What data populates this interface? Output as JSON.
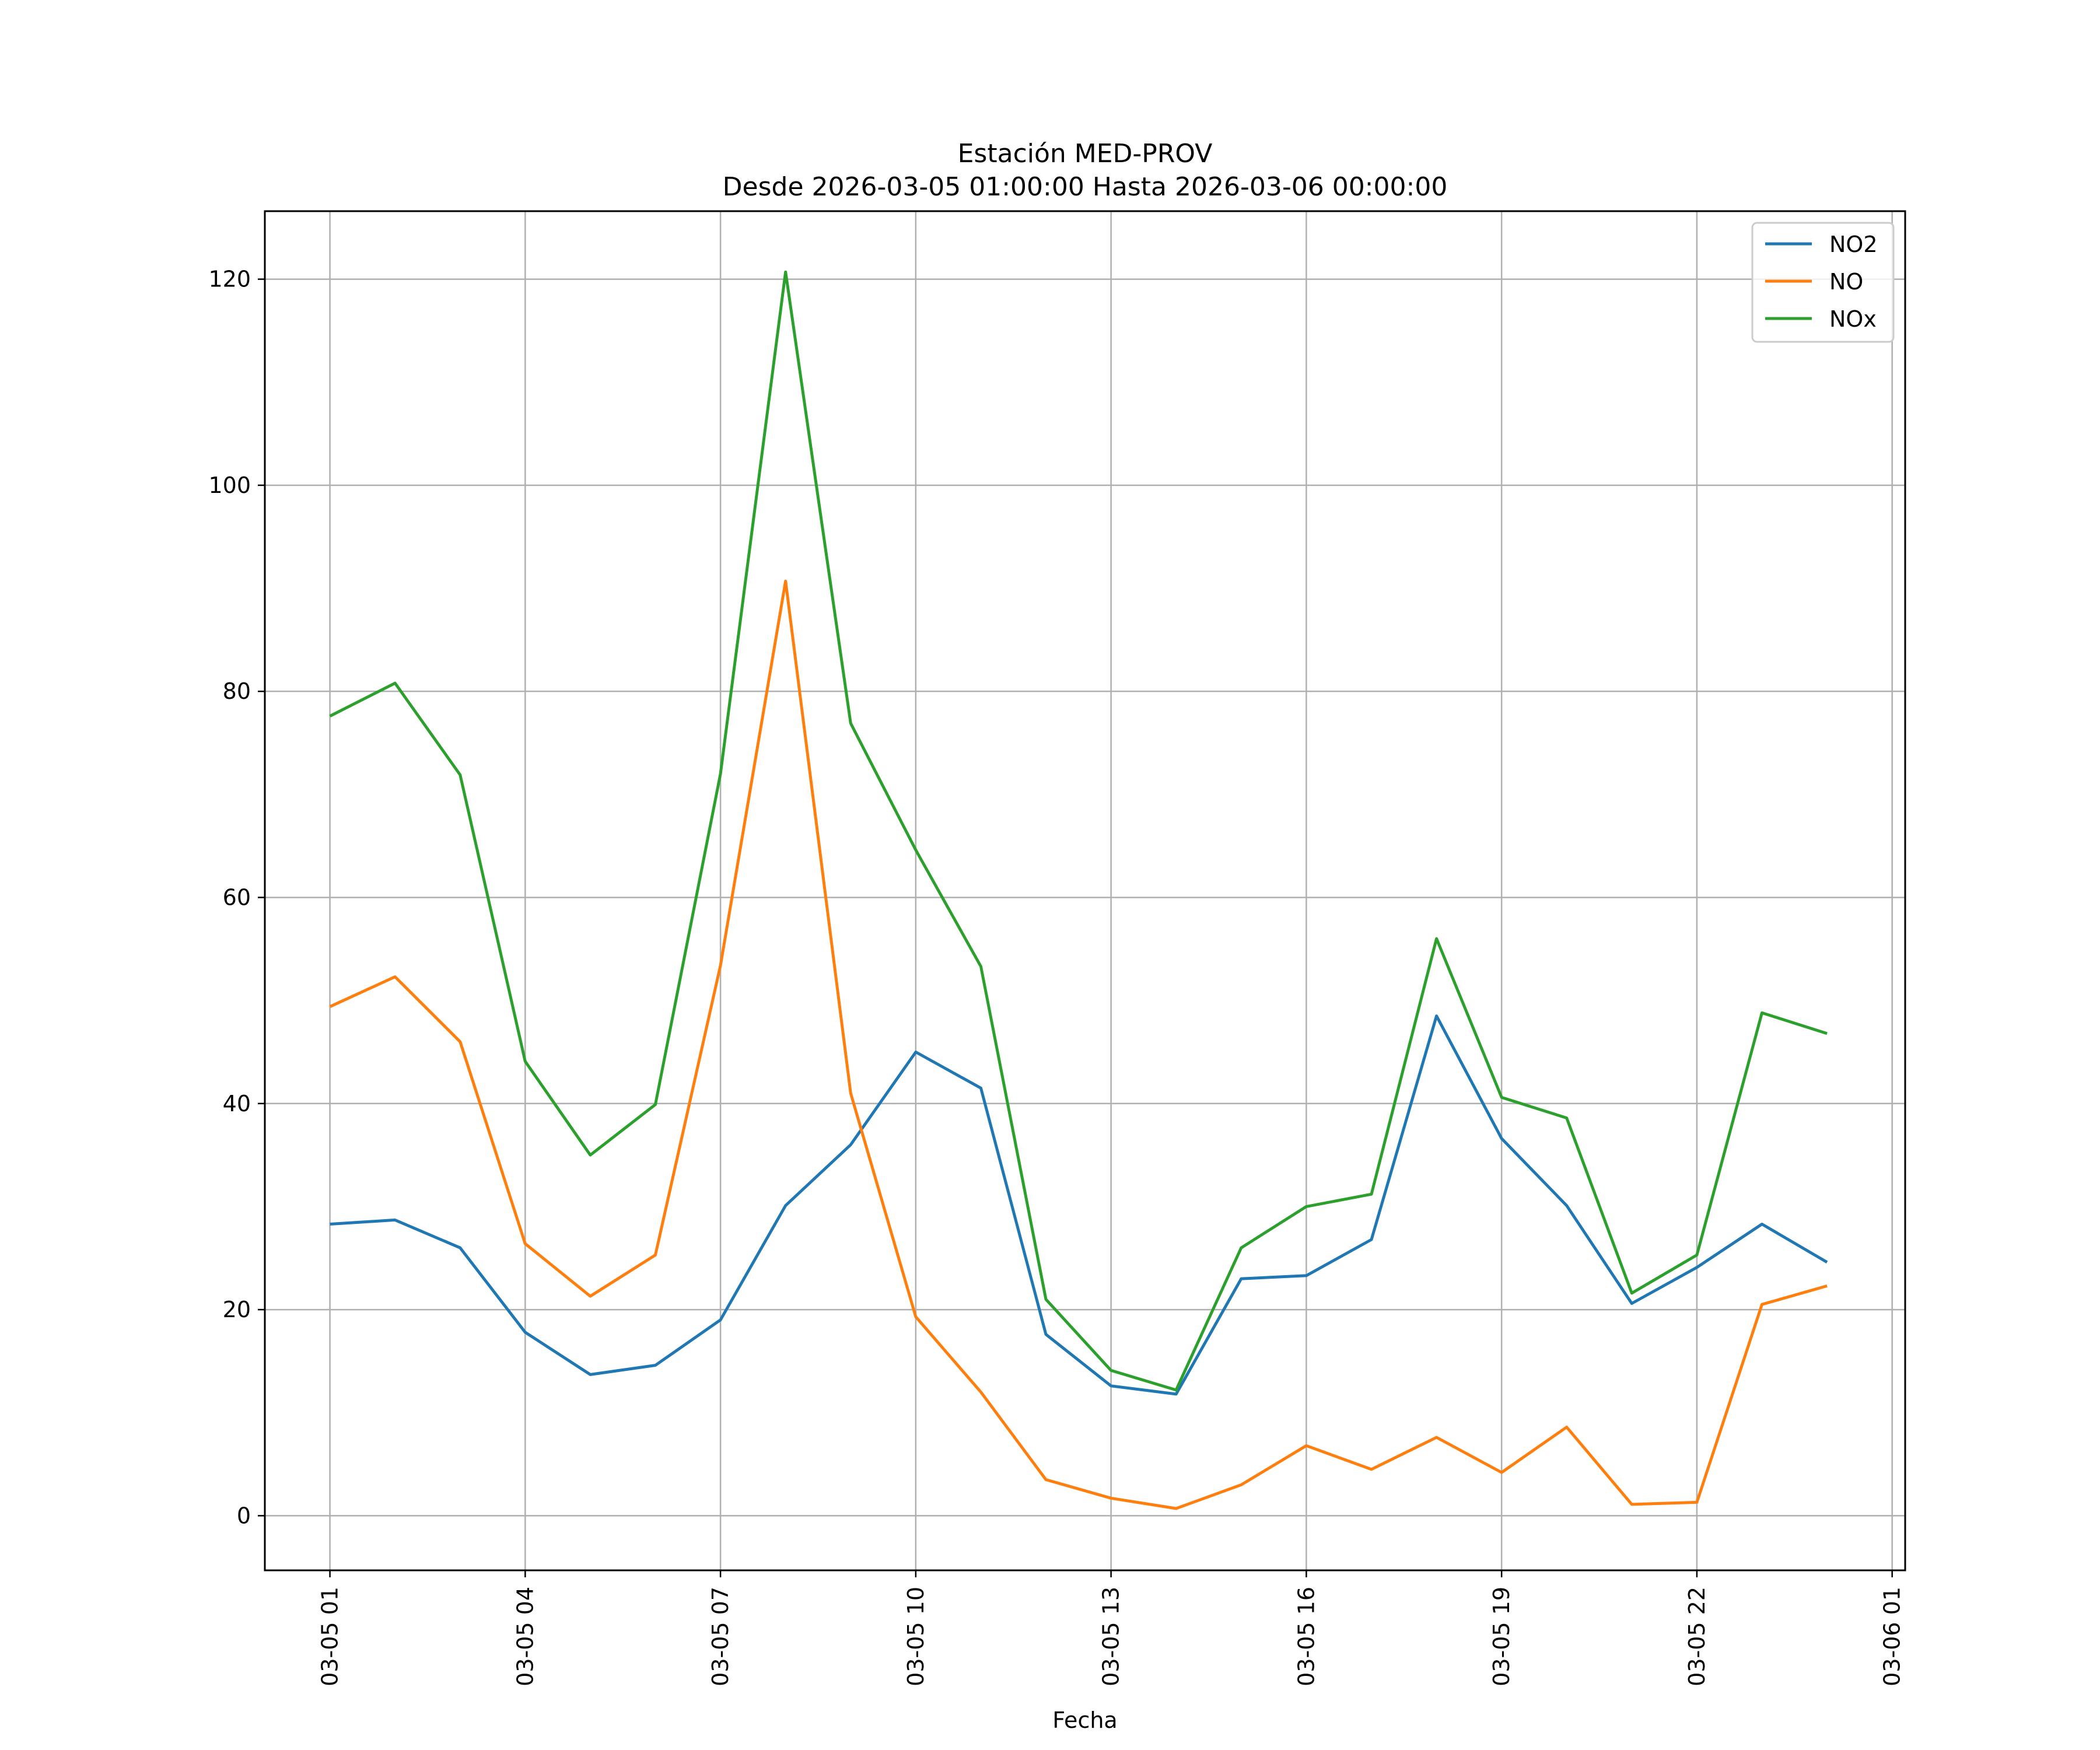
{
  "chart_data": {
    "type": "line",
    "title": "Estación MED-PROV",
    "subtitle": "Desde 2026-03-05 01:00:00 Hasta 2026-03-06 00:00:00",
    "xlabel": "Fecha",
    "ylabel": "",
    "x_unit": "hour",
    "x": [
      "2026-03-05 01:00",
      "2026-03-05 02:00",
      "2026-03-05 03:00",
      "2026-03-05 04:00",
      "2026-03-05 05:00",
      "2026-03-05 06:00",
      "2026-03-05 07:00",
      "2026-03-05 08:00",
      "2026-03-05 09:00",
      "2026-03-05 10:00",
      "2026-03-05 11:00",
      "2026-03-05 12:00",
      "2026-03-05 13:00",
      "2026-03-05 14:00",
      "2026-03-05 15:00",
      "2026-03-05 16:00",
      "2026-03-05 17:00",
      "2026-03-05 18:00",
      "2026-03-05 19:00",
      "2026-03-05 20:00",
      "2026-03-05 21:00",
      "2026-03-05 22:00",
      "2026-03-05 23:00",
      "2026-03-06 00:00"
    ],
    "xlim": [
      "2026-03-05 00:00",
      "2026-03-06 01:12"
    ],
    "ylim": [
      -5.3,
      126.6
    ],
    "xticks": [
      "2026-03-05 01:00",
      "2026-03-05 04:00",
      "2026-03-05 07:00",
      "2026-03-05 10:00",
      "2026-03-05 13:00",
      "2026-03-05 16:00",
      "2026-03-05 19:00",
      "2026-03-05 22:00",
      "2026-03-06 01:00"
    ],
    "xtick_labels": [
      "03-05 01",
      "03-05 04",
      "03-05 07",
      "03-05 10",
      "03-05 13",
      "03-05 16",
      "03-05 19",
      "03-05 22",
      "03-06 01"
    ],
    "yticks": [
      0,
      20,
      40,
      60,
      80,
      100,
      120
    ],
    "grid": true,
    "legend_position": "top-right",
    "series": [
      {
        "name": "NO2",
        "color": "#1f77b4",
        "values": [
          28.3,
          28.7,
          26.0,
          17.8,
          13.7,
          14.6,
          19.0,
          30.1,
          36.0,
          45.0,
          41.5,
          17.6,
          12.6,
          11.8,
          23.0,
          23.3,
          26.8,
          48.5,
          36.6,
          30.1,
          20.6,
          24.1,
          28.3,
          24.6
        ]
      },
      {
        "name": "NO",
        "color": "#ff7f0e",
        "values": [
          49.4,
          52.3,
          46.0,
          26.4,
          21.3,
          25.3,
          53.4,
          90.7,
          41.0,
          19.3,
          12.0,
          3.5,
          1.7,
          0.7,
          3.0,
          6.8,
          4.5,
          7.6,
          4.2,
          8.6,
          1.1,
          1.3,
          20.5,
          22.3
        ]
      },
      {
        "name": "NOx",
        "color": "#2ca02c",
        "values": [
          77.6,
          80.8,
          71.9,
          44.1,
          35.0,
          39.9,
          72.0,
          120.7,
          76.9,
          64.6,
          53.3,
          21.0,
          14.1,
          12.2,
          26.0,
          30.0,
          31.2,
          56.0,
          40.6,
          38.6,
          21.6,
          25.3,
          48.8,
          46.8
        ]
      }
    ]
  }
}
